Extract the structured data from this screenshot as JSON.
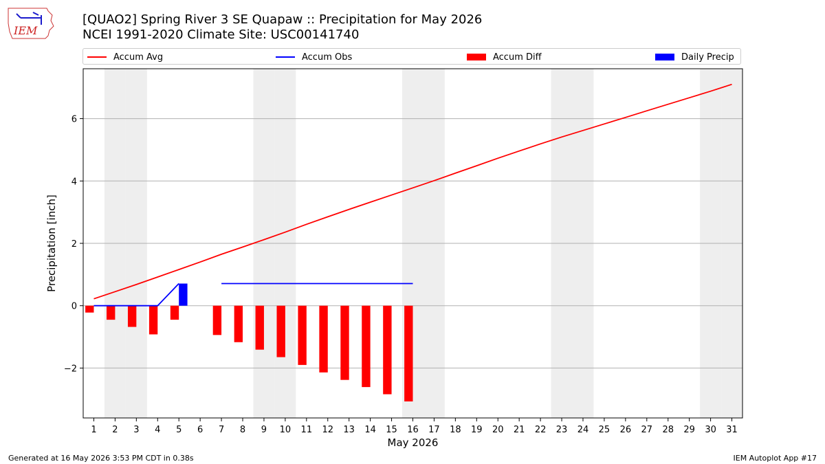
{
  "header": {
    "title": "[QUAO2] Spring River 3 SE Quapaw :: Precipitation for May 2026",
    "subtitle": "NCEI 1991-2020 Climate Site: USC00141740",
    "logo_text": "IEM"
  },
  "legend": {
    "items": [
      {
        "label": "Accum Avg",
        "kind": "line",
        "color": "#ff0000"
      },
      {
        "label": "Accum Obs",
        "kind": "line",
        "color": "#0000ff"
      },
      {
        "label": "Accum Diff",
        "kind": "box",
        "color": "#ff0000"
      },
      {
        "label": "Daily Precip",
        "kind": "box",
        "color": "#0000ff"
      }
    ]
  },
  "footer": {
    "generated": "Generated at 16 May 2026 3:53 PM CDT in 0.38s",
    "app": "IEM Autoplot App #17"
  },
  "chart_data": {
    "type": "bar",
    "xlabel": "May 2026",
    "ylabel": "Precipitation [inch]",
    "x_ticks": [
      1,
      2,
      3,
      4,
      5,
      6,
      7,
      8,
      9,
      10,
      11,
      12,
      13,
      14,
      15,
      16,
      17,
      18,
      19,
      20,
      21,
      22,
      23,
      24,
      25,
      26,
      27,
      28,
      29,
      30,
      31
    ],
    "xlim": [
      0.5,
      31.5
    ],
    "ylim": [
      -3.6,
      7.6
    ],
    "y_ticks": [
      -2,
      0,
      2,
      4,
      6
    ],
    "y_tick_labels": [
      "−2",
      "0",
      "2",
      "4",
      "6"
    ],
    "grid": "horizontal",
    "weekend_days": [
      2,
      3,
      9,
      10,
      16,
      17,
      23,
      24,
      30,
      31
    ],
    "weekend_color": "#eeeeee",
    "series": [
      {
        "name": "Accum Avg",
        "type": "line",
        "color": "#ff0000",
        "x": [
          1,
          2,
          3,
          4,
          5,
          6,
          7,
          8,
          9,
          10,
          11,
          12,
          13,
          14,
          15,
          16,
          17,
          18,
          19,
          20,
          21,
          22,
          23,
          24,
          25,
          26,
          27,
          28,
          29,
          30,
          31
        ],
        "values": [
          0.22,
          0.45,
          0.68,
          0.92,
          1.16,
          1.4,
          1.65,
          1.88,
          2.12,
          2.36,
          2.61,
          2.85,
          3.09,
          3.32,
          3.55,
          3.78,
          4.01,
          4.25,
          4.49,
          4.73,
          4.96,
          5.19,
          5.41,
          5.62,
          5.83,
          6.04,
          6.25,
          6.46,
          6.67,
          6.88,
          7.1
        ]
      },
      {
        "name": "Accum Obs",
        "type": "line",
        "color": "#0000ff",
        "x": [
          1,
          2,
          3,
          4,
          5,
          6,
          7,
          8,
          9,
          10,
          11,
          12,
          13,
          14,
          15,
          16
        ],
        "values": [
          0,
          0,
          0,
          0,
          0.71,
          null,
          0.71,
          0.71,
          0.71,
          0.71,
          0.71,
          0.71,
          0.71,
          0.71,
          0.71,
          0.71
        ]
      },
      {
        "name": "Accum Diff",
        "type": "bar",
        "color": "#ff0000",
        "x": [
          1,
          2,
          3,
          4,
          5,
          7,
          8,
          9,
          10,
          11,
          12,
          13,
          14,
          15,
          16
        ],
        "values": [
          -0.22,
          -0.45,
          -0.68,
          -0.92,
          -0.45,
          -0.94,
          -1.17,
          -1.41,
          -1.65,
          -1.9,
          -2.14,
          -2.38,
          -2.61,
          -2.84,
          -3.07
        ]
      },
      {
        "name": "Daily Precip",
        "type": "bar",
        "color": "#0000ff",
        "x": [
          5
        ],
        "values": [
          0.71
        ]
      }
    ]
  }
}
